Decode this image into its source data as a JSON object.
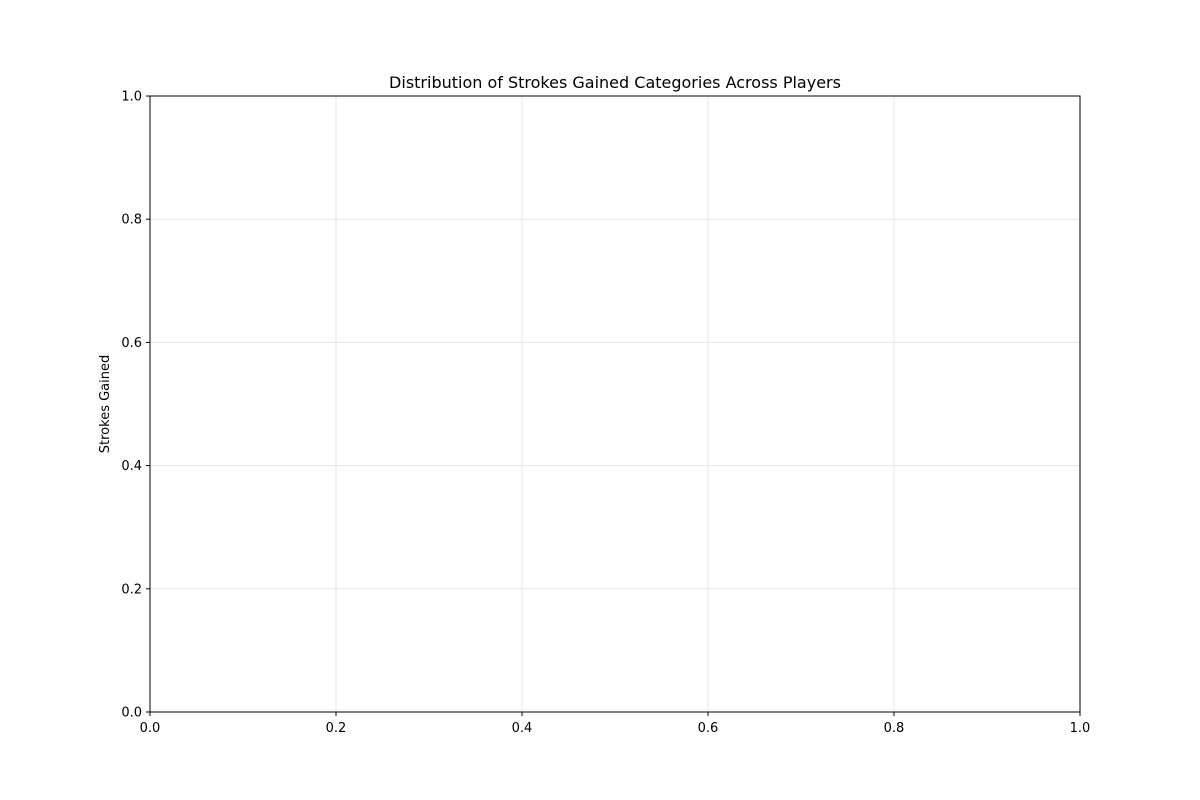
{
  "chart_data": {
    "type": "box",
    "title": "Distribution of Strokes Gained Categories Across Players",
    "xlabel": "",
    "ylabel": "Strokes Gained",
    "xlim": [
      0.0,
      1.0
    ],
    "ylim": [
      0.0,
      1.0
    ],
    "xticks": [
      "0.0",
      "0.2",
      "0.4",
      "0.6",
      "0.8",
      "1.0"
    ],
    "yticks": [
      "0.0",
      "0.2",
      "0.4",
      "0.6",
      "0.8",
      "1.0"
    ],
    "grid": true,
    "legend": "none",
    "series": [],
    "colors": {
      "grid": "#e6e6e6",
      "axis": "#000000",
      "background": "#ffffff"
    }
  }
}
